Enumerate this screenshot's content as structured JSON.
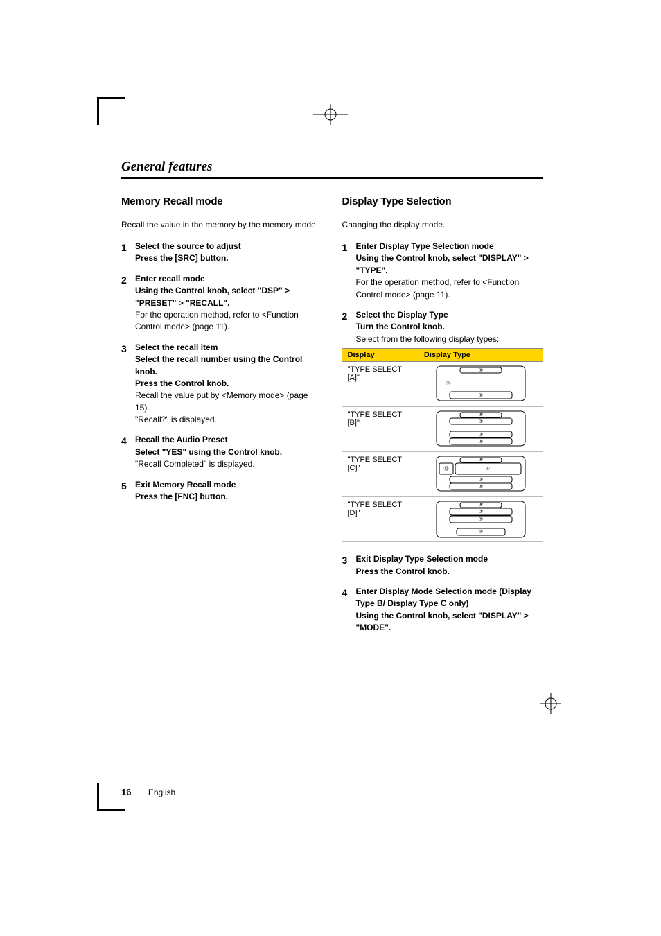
{
  "colors": {
    "accent": "#ffd400",
    "rule": "#000000",
    "row_border": "#bbbbbb"
  },
  "footer": {
    "page": "16",
    "lang": "English"
  },
  "section_title": "General features",
  "left": {
    "heading": "Memory Recall mode",
    "intro": "Recall the value in the memory by the memory mode.",
    "steps": [
      {
        "n": "1",
        "t": "Select the source to adjust",
        "b": "Press the [SRC] button."
      },
      {
        "n": "2",
        "t": "Enter recall mode",
        "b": "Using the Control knob, select \"DSP\" > \"PRESET\" > \"RECALL\".",
        "r": "For the operation method, refer to <Function Control mode> (page 11)."
      },
      {
        "n": "3",
        "t": "Select the recall item",
        "b": "Select the recall number using the Control knob.",
        "b2": "Press the Control knob.",
        "r": "Recall the value put by <Memory mode> (page 15).",
        "r2": "\"Recall?\" is displayed."
      },
      {
        "n": "4",
        "t": "Recall the Audio Preset",
        "b": "Select \"YES\" using the Control knob.",
        "r": "\"Recall Completed\" is displayed."
      },
      {
        "n": "5",
        "t": "Exit Memory Recall mode",
        "b": "Press the [FNC] button."
      }
    ]
  },
  "right": {
    "heading": "Display Type Selection",
    "intro": "Changing the display mode.",
    "step1_t": "Enter Display Type Selection mode",
    "step1_b": "Using the Control knob, select \"DISPLAY\" > \"TYPE\".",
    "step1_r": "For the operation method, refer to <Function Control mode> (page 11).",
    "step2_t": "Select the Display Type",
    "step2_b": "Turn the Control knob.",
    "step2_r": "Select from the following display types:",
    "table": {
      "head": [
        "Display",
        "Display Type"
      ],
      "rows": [
        {
          "d": "\"TYPE SELECT [A]\"",
          "layout": "A",
          "labels": [
            "⑨",
            "⑪",
            "①"
          ]
        },
        {
          "d": "\"TYPE SELECT [B]\"",
          "layout": "B",
          "labels": [
            "⑨",
            "②",
            "③",
            "⑤"
          ]
        },
        {
          "d": "\"TYPE SELECT [C]\"",
          "layout": "C",
          "labels": [
            "⑨",
            "⑫",
            "④",
            "③",
            "⑤"
          ]
        },
        {
          "d": "\"TYPE SELECT [D]\"",
          "layout": "D",
          "labels": [
            "⑨",
            "⑦",
            "⑦",
            "⑩"
          ]
        }
      ]
    },
    "step3_t": "Exit Display Type Selection mode",
    "step3_b": "Press the Control knob.",
    "step4_t": "Enter Display Mode Selection mode (Display Type B/ Display Type C only)",
    "step4_b": "Using the Control knob, select \"DISPLAY\" > \"MODE\"."
  }
}
